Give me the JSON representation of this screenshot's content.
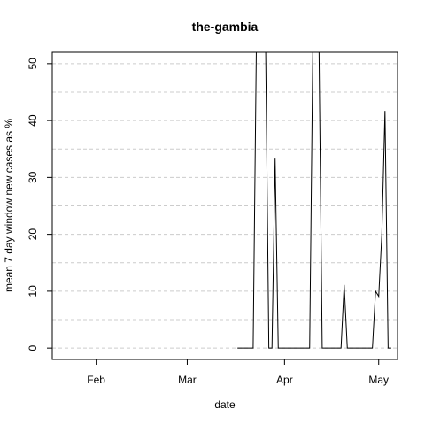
{
  "chart_data": {
    "type": "line",
    "title": "the-gambia",
    "xlabel": "date",
    "ylabel": "mean  7  day window new cases as %",
    "x_ticks": [
      "Feb",
      "Mar",
      "Apr",
      "May"
    ],
    "y_ticks": [
      "0",
      "10",
      "20",
      "30",
      "40",
      "50"
    ],
    "xlim": [
      "2020-01-18",
      "2020-05-07"
    ],
    "ylim": [
      -2,
      52
    ],
    "grid": "horizontal dashed",
    "series": [
      {
        "color": "#000000",
        "points": [
          [
            "2020-03-17",
            0
          ],
          [
            "2020-03-22",
            0
          ],
          [
            "2020-03-23",
            52
          ],
          [
            "2020-03-24",
            52
          ],
          [
            "2020-03-25",
            52
          ],
          [
            "2020-03-26",
            52
          ],
          [
            "2020-03-27",
            0
          ],
          [
            "2020-03-28",
            0
          ],
          [
            "2020-03-29",
            33.3
          ],
          [
            "2020-03-30",
            0
          ],
          [
            "2020-04-01",
            0
          ],
          [
            "2020-04-04",
            0
          ],
          [
            "2020-04-07",
            0
          ],
          [
            "2020-04-09",
            0
          ],
          [
            "2020-04-10",
            52
          ],
          [
            "2020-04-11",
            52
          ],
          [
            "2020-04-12",
            52
          ],
          [
            "2020-04-13",
            0
          ],
          [
            "2020-04-16",
            0
          ],
          [
            "2020-04-19",
            0
          ],
          [
            "2020-04-20",
            11.1
          ],
          [
            "2020-04-21",
            0
          ],
          [
            "2020-04-24",
            0
          ],
          [
            "2020-04-27",
            0
          ],
          [
            "2020-04-29",
            0
          ],
          [
            "2020-04-30",
            10
          ],
          [
            "2020-05-01",
            9.1
          ],
          [
            "2020-05-02",
            20
          ],
          [
            "2020-05-03",
            41.7
          ],
          [
            "2020-05-04",
            0
          ],
          [
            "2020-05-05",
            0
          ]
        ]
      }
    ]
  }
}
